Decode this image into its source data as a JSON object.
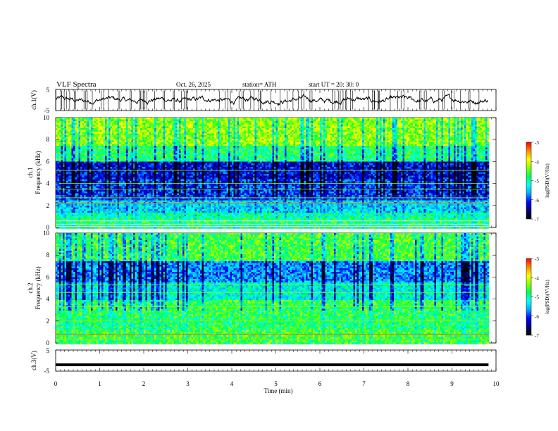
{
  "header": {
    "title": "VLF  Spectra",
    "date": "Oct. 26, 2025",
    "station": "station= ATH",
    "start": "start  UT  =   20: 30: 0"
  },
  "colors": {
    "colormap": [
      "#000000",
      "#00007a",
      "#0000ff",
      "#00aaff",
      "#00ffff",
      "#00ff55",
      "#88ff00",
      "#ffff00",
      "#ff8800",
      "#ff0000",
      "#ffffff"
    ]
  },
  "chart_data": [
    {
      "type": "line",
      "name": "ch1-waveform",
      "ylabel": "ch.1(V)",
      "ylim": [
        -5,
        5
      ],
      "yticks": [
        "5",
        "-5"
      ],
      "xlim": [
        0,
        10
      ],
      "note": "noisy waveform roughly between -1 and 1 V with frequent spikes"
    },
    {
      "type": "heatmap",
      "name": "ch1-spectrogram",
      "ylabel": "ch.1\nFrequency  (kHz)",
      "ylim": [
        0,
        10
      ],
      "yticks": [
        "0",
        "2",
        "4",
        "6",
        "8",
        "10"
      ],
      "xlim": [
        0,
        10
      ],
      "colorbar": {
        "label": "log(PSD)(V²/Hz)",
        "range": [
          -7,
          -3
        ],
        "ticks": [
          "-3",
          "-4",
          "-5",
          "-6",
          "-7"
        ]
      }
    },
    {
      "type": "heatmap",
      "name": "ch2-spectrogram",
      "ylabel": "ch.2\nFrequency  (kHz)",
      "ylim": [
        0,
        10
      ],
      "yticks": [
        "0",
        "2",
        "4",
        "6",
        "8",
        "10"
      ],
      "xlim": [
        0,
        10
      ],
      "colorbar": {
        "label": "log(PSD)(V²/Hz)",
        "range": [
          -7,
          -3
        ],
        "ticks": [
          "-3",
          "-4",
          "-5",
          "-6",
          "-7"
        ]
      }
    },
    {
      "type": "line",
      "name": "ch3-waveform",
      "ylabel": "ch.3(V)",
      "ylim": [
        -5,
        5
      ],
      "yticks": [
        "5",
        "-5"
      ],
      "xlim": [
        0,
        10
      ],
      "note": "flat signal at about -2 V"
    }
  ],
  "xaxis": {
    "label": "Time  (min)",
    "ticks": [
      "0",
      "1",
      "2",
      "3",
      "4",
      "5",
      "6",
      "7",
      "8",
      "9",
      "10"
    ],
    "data_end": 9.83
  }
}
